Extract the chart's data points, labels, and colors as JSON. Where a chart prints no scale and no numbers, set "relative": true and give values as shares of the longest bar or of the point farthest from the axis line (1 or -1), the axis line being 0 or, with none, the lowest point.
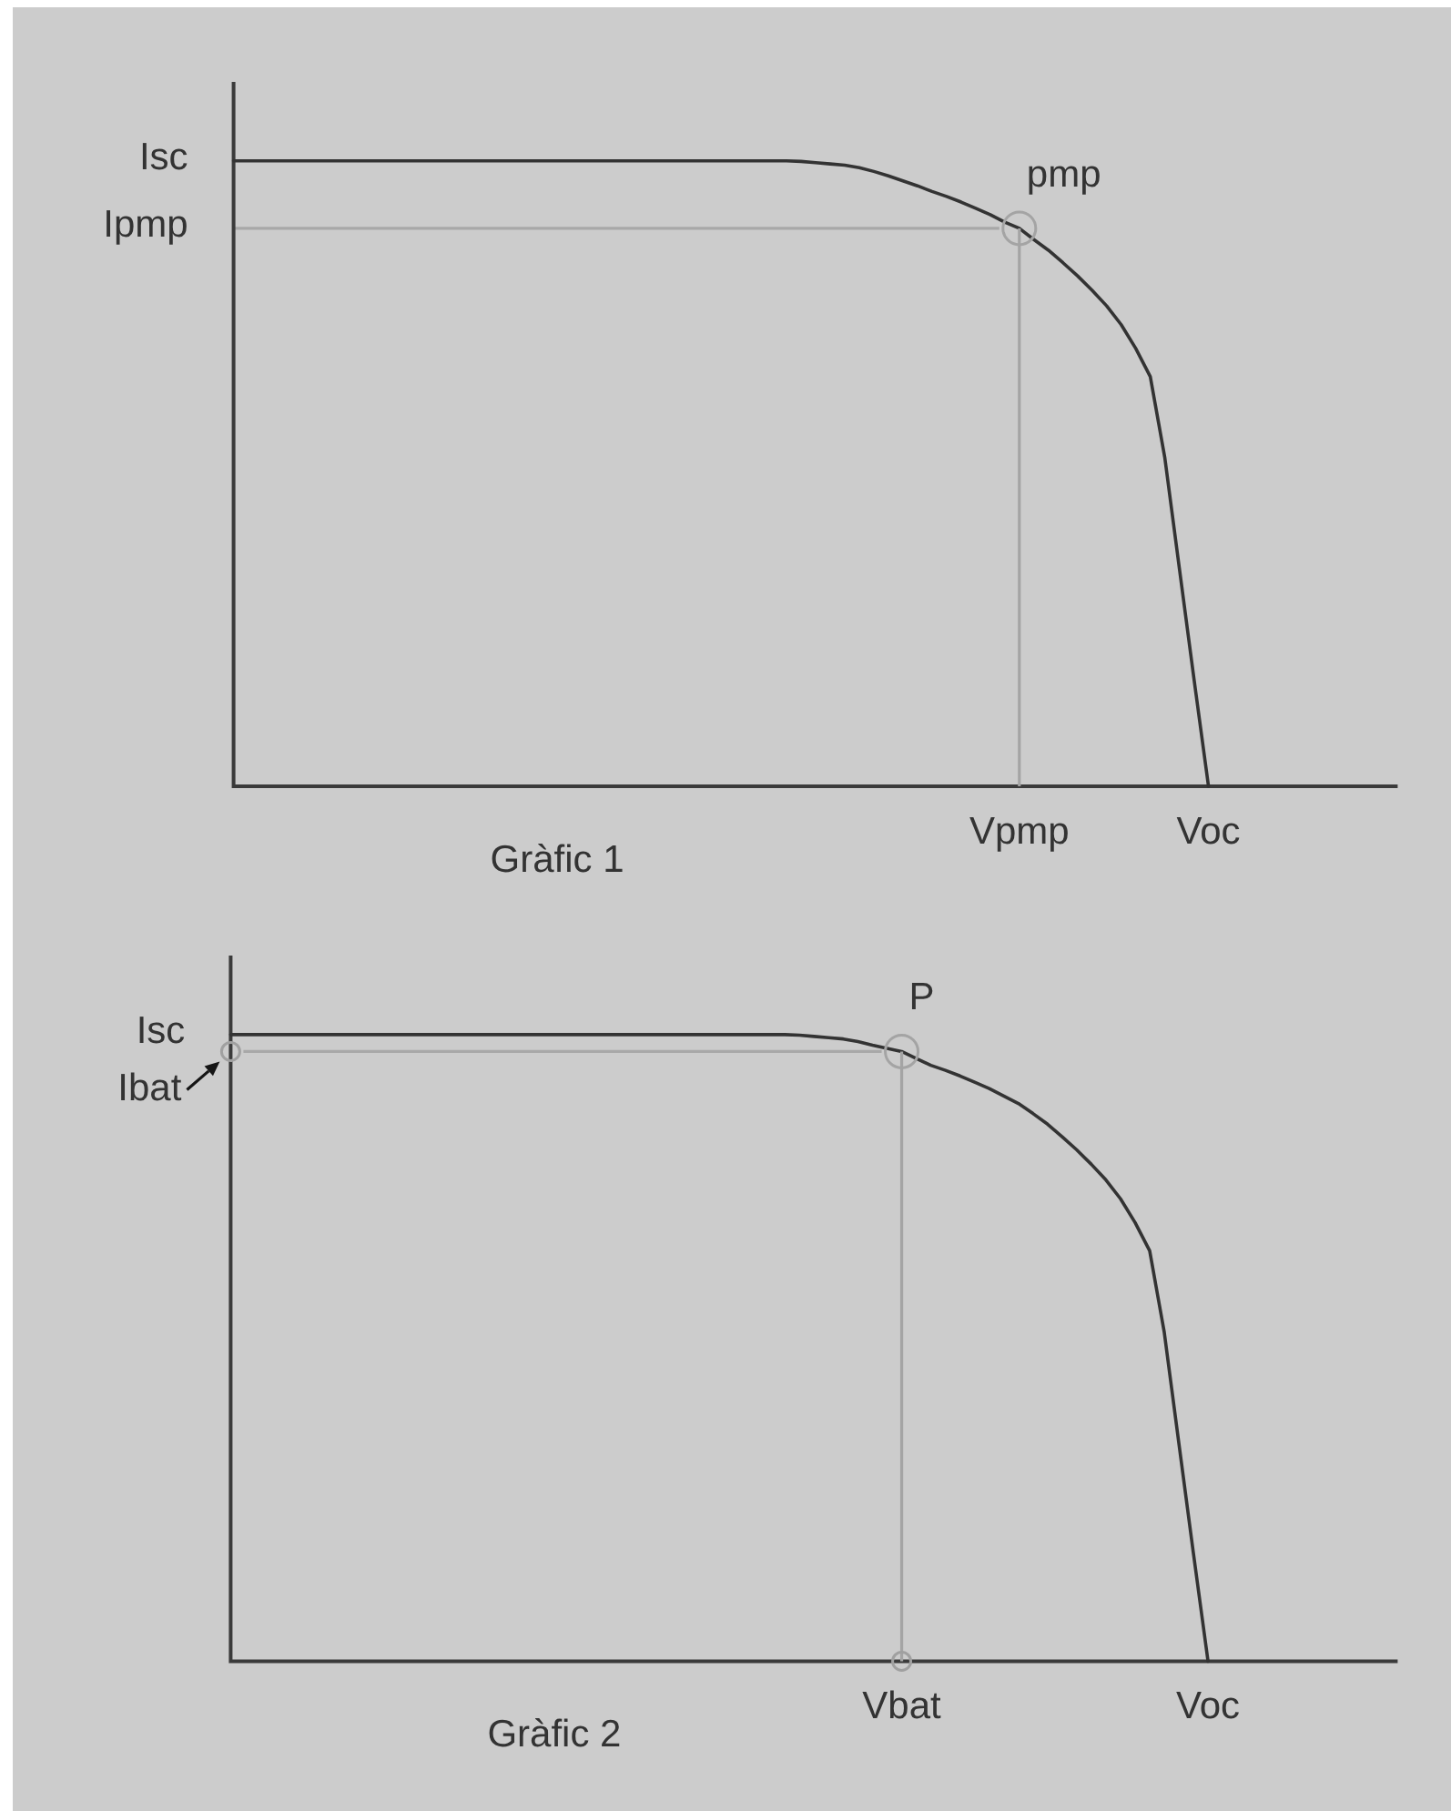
{
  "chart_data": [
    {
      "type": "line",
      "title": "Gràfic 1",
      "relative": true,
      "categories": [
        null,
        null,
        null,
        null,
        null,
        null,
        null,
        null,
        null,
        null,
        null,
        null,
        null,
        null,
        null,
        null,
        null,
        null,
        null,
        null,
        null,
        null,
        null,
        null,
        null,
        null,
        null,
        null,
        null,
        null,
        null,
        null,
        null,
        null,
        null,
        null,
        null,
        null,
        null,
        null,
        null,
        null,
        null,
        null,
        null,
        null,
        null,
        null,
        null,
        null,
        null,
        null,
        null,
        null,
        "Vpmp",
        null,
        null,
        null,
        null,
        null,
        null,
        null,
        null,
        null,
        null,
        null,
        null,
        "Voc",
        null,
        null,
        null,
        null,
        null,
        null,
        null,
        null,
        null,
        null,
        null,
        null,
        null
      ],
      "series": [
        {
          "color": "#333333",
          "values": [
            1,
            1,
            1,
            1,
            1,
            1,
            1,
            1,
            1,
            1,
            1,
            1,
            1,
            1,
            1,
            1,
            1,
            1,
            1,
            1,
            1,
            1,
            1,
            1,
            1,
            1,
            1,
            1,
            1,
            1,
            1,
            1,
            1,
            1,
            1,
            1,
            1,
            1,
            1,
            0.999,
            0.997,
            0.995,
            0.993,
            0.989,
            0.983,
            0.976,
            0.968,
            0.96,
            0.951,
            0.943,
            0.934,
            0.924,
            0.914,
            0.902,
            0.892,
            0.874,
            0.857,
            0.837,
            0.816,
            0.793,
            0.768,
            0.738,
            0.7,
            0.655,
            0.525,
            0.348,
            0.172,
            0,
            null,
            null,
            null,
            null,
            null,
            null,
            null,
            null,
            null,
            null,
            null,
            null,
            null
          ]
        },
        {
          "type": "lollipop",
          "x": [
            "Vpmp"
          ],
          "values": [
            0.892
          ],
          "color": "#a4a4a4",
          "marker": "circle"
        }
      ],
      "ref_lines": [
        {
          "axis": "y",
          "value": 0.892,
          "label": "Ipmp",
          "color": "#a8a8a8"
        }
      ],
      "annotations": [
        "Isc",
        {
          "text": "pmp",
          "x": "Vpmp",
          "y": 0.892
        }
      ]
    },
    {
      "type": "line",
      "title": "Gràfic 2",
      "relative": true,
      "categories": [
        null,
        null,
        null,
        null,
        null,
        null,
        null,
        null,
        null,
        null,
        null,
        null,
        null,
        null,
        null,
        null,
        null,
        null,
        null,
        null,
        null,
        null,
        null,
        null,
        null,
        null,
        null,
        null,
        null,
        null,
        null,
        null,
        null,
        null,
        null,
        null,
        null,
        null,
        null,
        null,
        null,
        null,
        null,
        null,
        null,
        null,
        "Vbat",
        null,
        null,
        null,
        null,
        null,
        null,
        null,
        null,
        null,
        null,
        null,
        null,
        null,
        null,
        null,
        null,
        null,
        null,
        null,
        null,
        "Voc",
        null,
        null,
        null,
        null,
        null,
        null,
        null,
        null,
        null,
        null,
        null,
        null,
        null
      ],
      "series": [
        {
          "color": "#333333",
          "values": [
            1,
            1,
            1,
            1,
            1,
            1,
            1,
            1,
            1,
            1,
            1,
            1,
            1,
            1,
            1,
            1,
            1,
            1,
            1,
            1,
            1,
            1,
            1,
            1,
            1,
            1,
            1,
            1,
            1,
            1,
            1,
            1,
            1,
            1,
            1,
            1,
            1,
            1,
            1,
            0.999,
            0.997,
            0.995,
            0.993,
            0.989,
            0.983,
            0.978,
            0.973,
            0.962,
            0.951,
            0.943,
            0.934,
            0.924,
            0.914,
            0.902,
            0.89,
            0.874,
            0.857,
            0.837,
            0.816,
            0.793,
            0.768,
            0.738,
            0.7,
            0.655,
            0.525,
            0.348,
            0.172,
            0,
            null,
            null,
            null,
            null,
            null,
            null,
            null,
            null,
            null,
            null,
            null,
            null,
            null
          ]
        },
        {
          "type": "lollipop",
          "x": [
            "Vbat"
          ],
          "values": [
            0.973
          ],
          "color": "#a4a4a4",
          "marker": "circle"
        },
        {
          "type": "scatter",
          "color": "#a0a0a0",
          "marker": "circle",
          "values": [
            0.973,
            null,
            null,
            null,
            null,
            null,
            null,
            null,
            null,
            null,
            null,
            null,
            null,
            null,
            null,
            null,
            null,
            null,
            null,
            null,
            null,
            null,
            null,
            null,
            null,
            null,
            null,
            null,
            null,
            null,
            null,
            null,
            null,
            null,
            null,
            null,
            null,
            null,
            null,
            null,
            null,
            null,
            null,
            null,
            null,
            null,
            0,
            null,
            null,
            null,
            null,
            null,
            null,
            null,
            null,
            null,
            null,
            null,
            null,
            null,
            null,
            null,
            null,
            null,
            null,
            null,
            null,
            null,
            null,
            null,
            null,
            null,
            null,
            null,
            null,
            null,
            null,
            null,
            null,
            null,
            null
          ]
        }
      ],
      "ref_lines": [
        {
          "axis": "y",
          "value": 0.973,
          "label": "Ibat",
          "color": "#a8a8a8"
        }
      ],
      "annotations": [
        "Isc",
        {
          "text": "P",
          "x": "Vbat",
          "y": 0.973
        }
      ]
    }
  ]
}
